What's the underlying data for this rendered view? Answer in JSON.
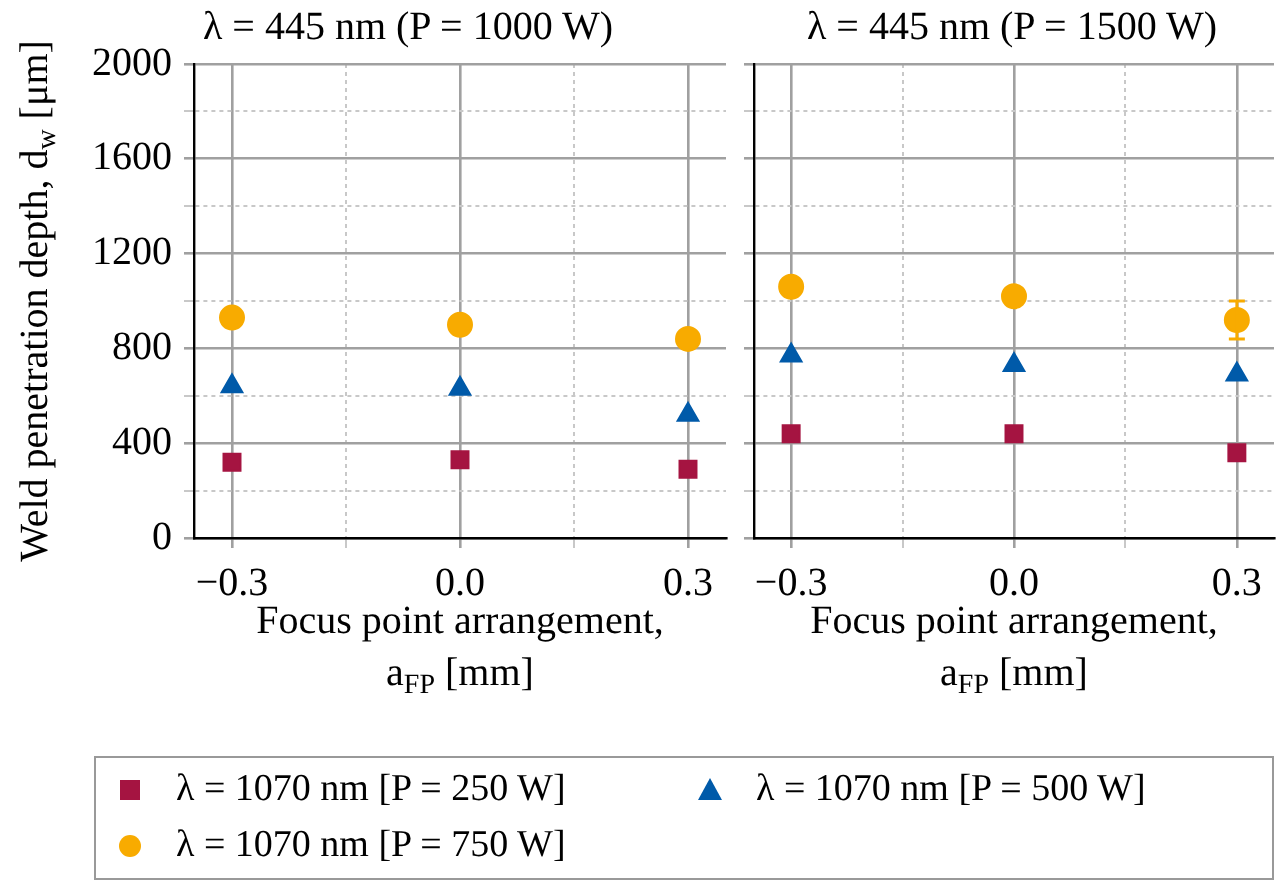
{
  "chart_data": [
    {
      "type": "scatter",
      "title": "λ = 445 nm (P = 1000 W)",
      "xlabel": "Focus point arrangement, a$_{FP}$ [mm]",
      "ylabel": "Weld penetration depth, d$_{w}$ [μm]",
      "xlim": [
        -0.35,
        0.35
      ],
      "xticks": [
        {
          "value": -0.3,
          "label": "−0.3"
        },
        {
          "value": -0.15,
          "label": null
        },
        {
          "value": 0,
          "label": "0.0"
        },
        {
          "value": 0.15,
          "label": null
        },
        {
          "value": 0.3,
          "label": "0.3"
        }
      ],
      "ylim": [
        0,
        2000
      ],
      "yticks": [
        0,
        {
          "value": 200,
          "label": null
        },
        400,
        {
          "value": 600,
          "label": null
        },
        800,
        {
          "value": 1000,
          "label": null
        },
        1200,
        {
          "value": 1400,
          "label": null
        },
        1600,
        {
          "value": 1800,
          "label": null
        },
        2000
      ],
      "grid": true,
      "legend": "bottom",
      "series": [
        {
          "name": "λ = 1070 nm [P = 250 W]",
          "color": "#a51441",
          "marker": "square",
          "x": [
            -0.3,
            0,
            0.3
          ],
          "values": [
            320,
            330,
            290
          ]
        },
        {
          "name": "λ = 1070 nm [P = 500 W]",
          "color": "#005aa9",
          "marker": "triangle",
          "x": [
            -0.3,
            0,
            0.3
          ],
          "values": [
            640,
            630,
            520
          ]
        },
        {
          "name": "λ = 1070 nm [P = 750 W]",
          "color": "#f8ab00",
          "marker": "circle",
          "x": [
            -0.3,
            0,
            0.3
          ],
          "values": [
            930,
            900,
            840
          ]
        }
      ]
    },
    {
      "type": "scatter",
      "title": "λ = 445 nm (P = 1500 W)",
      "xlabel": "Focus point arrangement, a$_{FP}$ [mm]",
      "xlim": [
        -0.35,
        0.35
      ],
      "xticks": [
        {
          "value": -0.3,
          "label": "−0.3"
        },
        {
          "value": -0.15,
          "label": null
        },
        {
          "value": 0,
          "label": "0.0"
        },
        {
          "value": 0.15,
          "label": null
        },
        {
          "value": 0.3,
          "label": "0.3"
        }
      ],
      "ylim": [
        0,
        2000
      ],
      "yticks": [
        0,
        {
          "value": 200,
          "label": null
        },
        400,
        {
          "value": 600,
          "label": null
        },
        800,
        {
          "value": 1000,
          "label": null
        },
        1200,
        {
          "value": 1400,
          "label": null
        },
        1600,
        {
          "value": 1800,
          "label": null
        },
        2000
      ],
      "grid": true,
      "tick_labels": "x",
      "series": [
        {
          "name": "λ = 1070 nm [P = 250 W]",
          "color": "#a51441",
          "marker": "square",
          "x": [
            -0.3,
            0,
            0.3
          ],
          "values": [
            440,
            440,
            360
          ]
        },
        {
          "name": "λ = 1070 nm [P = 500 W]",
          "color": "#005aa9",
          "marker": "triangle",
          "x": [
            -0.3,
            0,
            0.3
          ],
          "values": [
            770,
            730,
            690
          ]
        },
        {
          "name": "λ = 1070 nm [P = 750 W]",
          "color": "#f8ab00",
          "marker": "circle",
          "x": [
            -0.3,
            0,
            0.3
          ],
          "values": [
            1060,
            1020,
            920
          ],
          "errors": [
            null,
            null,
            80
          ]
        }
      ]
    }
  ]
}
